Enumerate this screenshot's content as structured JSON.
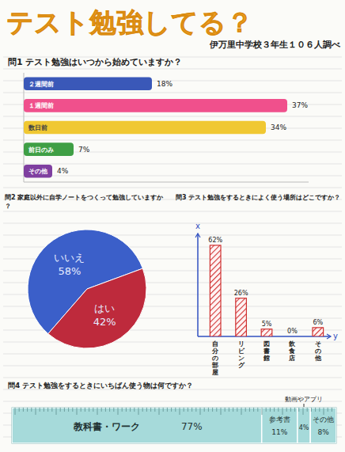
{
  "header": {
    "title": "テスト勉強してる？",
    "subtitle": "伊万里中学校３年生１０６人調べ"
  },
  "chart_data": [
    {
      "type": "bar",
      "title": "問1 テスト勉強はいつから始めていますか？",
      "orientation": "horizontal",
      "categories": [
        "２週間前",
        "１週間前",
        "数日前",
        "前日のみ",
        "その他"
      ],
      "values": [
        18,
        37,
        34,
        7,
        4
      ],
      "value_labels": [
        "18%",
        "37%",
        "34%",
        "7%",
        "4%"
      ],
      "colors": [
        "#3a58b8",
        "#f0508c",
        "#f0c832",
        "#3f9f45",
        "#7f3fa0"
      ],
      "xlim": [
        0,
        40
      ],
      "data_labels": true,
      "grid": false
    },
    {
      "type": "pie",
      "title": "問2 家庭以外に自学ノートをつくって勉強していますか？",
      "categories": [
        "いいえ",
        "はい"
      ],
      "values": [
        58,
        42
      ],
      "value_labels": [
        "58%",
        "42%"
      ],
      "colors": [
        "#3b5fc9",
        "#be2a3c"
      ],
      "data_labels": true
    },
    {
      "type": "bar",
      "title": "問3 テスト勉強をするときによく使う場所はどこですか？",
      "categories": [
        "自分の部屋",
        "リビング",
        "図書館",
        "飲食店",
        "その他"
      ],
      "values": [
        62,
        26,
        5,
        0,
        6
      ],
      "value_labels": [
        "62%",
        "26%",
        "5%",
        "0%",
        "6%"
      ],
      "color": "#d03232",
      "ylim": [
        0,
        70
      ],
      "xlabel": "y",
      "ylabel": "x",
      "tick_labels": "x",
      "data_labels": true,
      "grid": false
    },
    {
      "type": "bar",
      "title": "問4 テスト勉強をするときにいちばん使う物は何ですか？",
      "orientation": "horizontal",
      "stacked": true,
      "categories": [
        "教科書・ワーク",
        "参考書",
        "動画やアプリ",
        "その他"
      ],
      "values": [
        77,
        11,
        4,
        8
      ],
      "value_labels": [
        "77%",
        "11%",
        "4%",
        "8%"
      ],
      "color": "#a6dada",
      "xlim": [
        0,
        100
      ],
      "data_labels": true
    }
  ]
}
